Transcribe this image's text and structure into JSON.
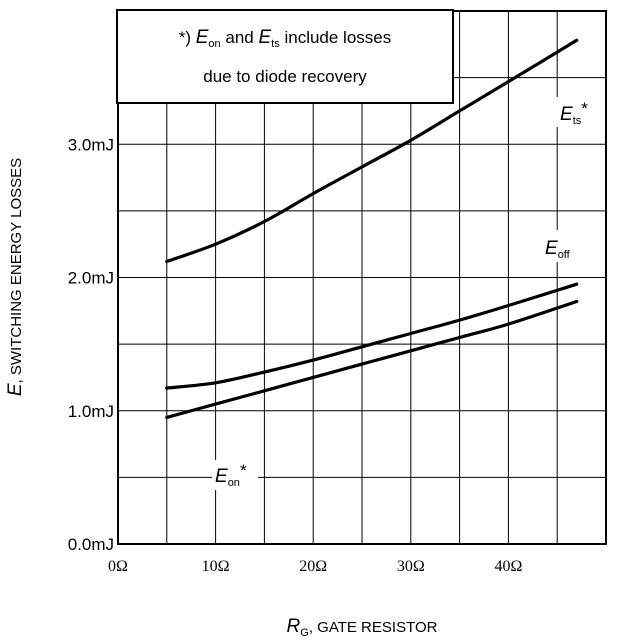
{
  "chart_data": {
    "type": "line",
    "xlabel": {
      "symbol": "R",
      "subscript": "G",
      "rest": ", GATE RESISTOR"
    },
    "ylabel": {
      "symbol": "E",
      "rest": ", SWITCHING ENERGY LOSSES"
    },
    "xlim": [
      0,
      50
    ],
    "ylim": [
      0.0,
      4.0
    ],
    "x_ticks": [
      0,
      10,
      20,
      30,
      40
    ],
    "x_tick_labels": [
      "0Ω",
      "10Ω",
      "20Ω",
      "30Ω",
      "40Ω"
    ],
    "y_ticks": [
      0.0,
      1.0,
      2.0,
      3.0
    ],
    "y_tick_labels": [
      "0.0mJ",
      "1.0mJ",
      "2.0mJ",
      "3.0mJ"
    ],
    "grid": true,
    "series": [
      {
        "name": "ts",
        "label_symbol": "E",
        "label_subscript": "ts",
        "label_suffix": "*",
        "x": [
          5,
          10,
          15,
          20,
          25,
          30,
          35,
          40,
          47
        ],
        "y": [
          2.12,
          2.25,
          2.42,
          2.63,
          2.83,
          3.03,
          3.25,
          3.47,
          3.78
        ]
      },
      {
        "name": "off",
        "label_symbol": "E",
        "label_subscript": "off",
        "label_suffix": "",
        "x": [
          5,
          10,
          15,
          20,
          25,
          30,
          35,
          40,
          47
        ],
        "y": [
          1.17,
          1.21,
          1.29,
          1.38,
          1.48,
          1.58,
          1.68,
          1.79,
          1.95
        ]
      },
      {
        "name": "on",
        "label_symbol": "E",
        "label_subscript": "on",
        "label_suffix": "*",
        "x": [
          5,
          10,
          15,
          20,
          25,
          30,
          35,
          40,
          47
        ],
        "y": [
          0.95,
          1.05,
          1.15,
          1.25,
          1.35,
          1.45,
          1.55,
          1.65,
          1.82
        ]
      }
    ],
    "annotation": {
      "prefix": "*) ",
      "sym1": "E",
      "sub1": "on",
      "mid": " and ",
      "sym2": "E",
      "sub2": "ts",
      "line1_rest": " include losses",
      "line2": "due to diode recovery"
    }
  }
}
